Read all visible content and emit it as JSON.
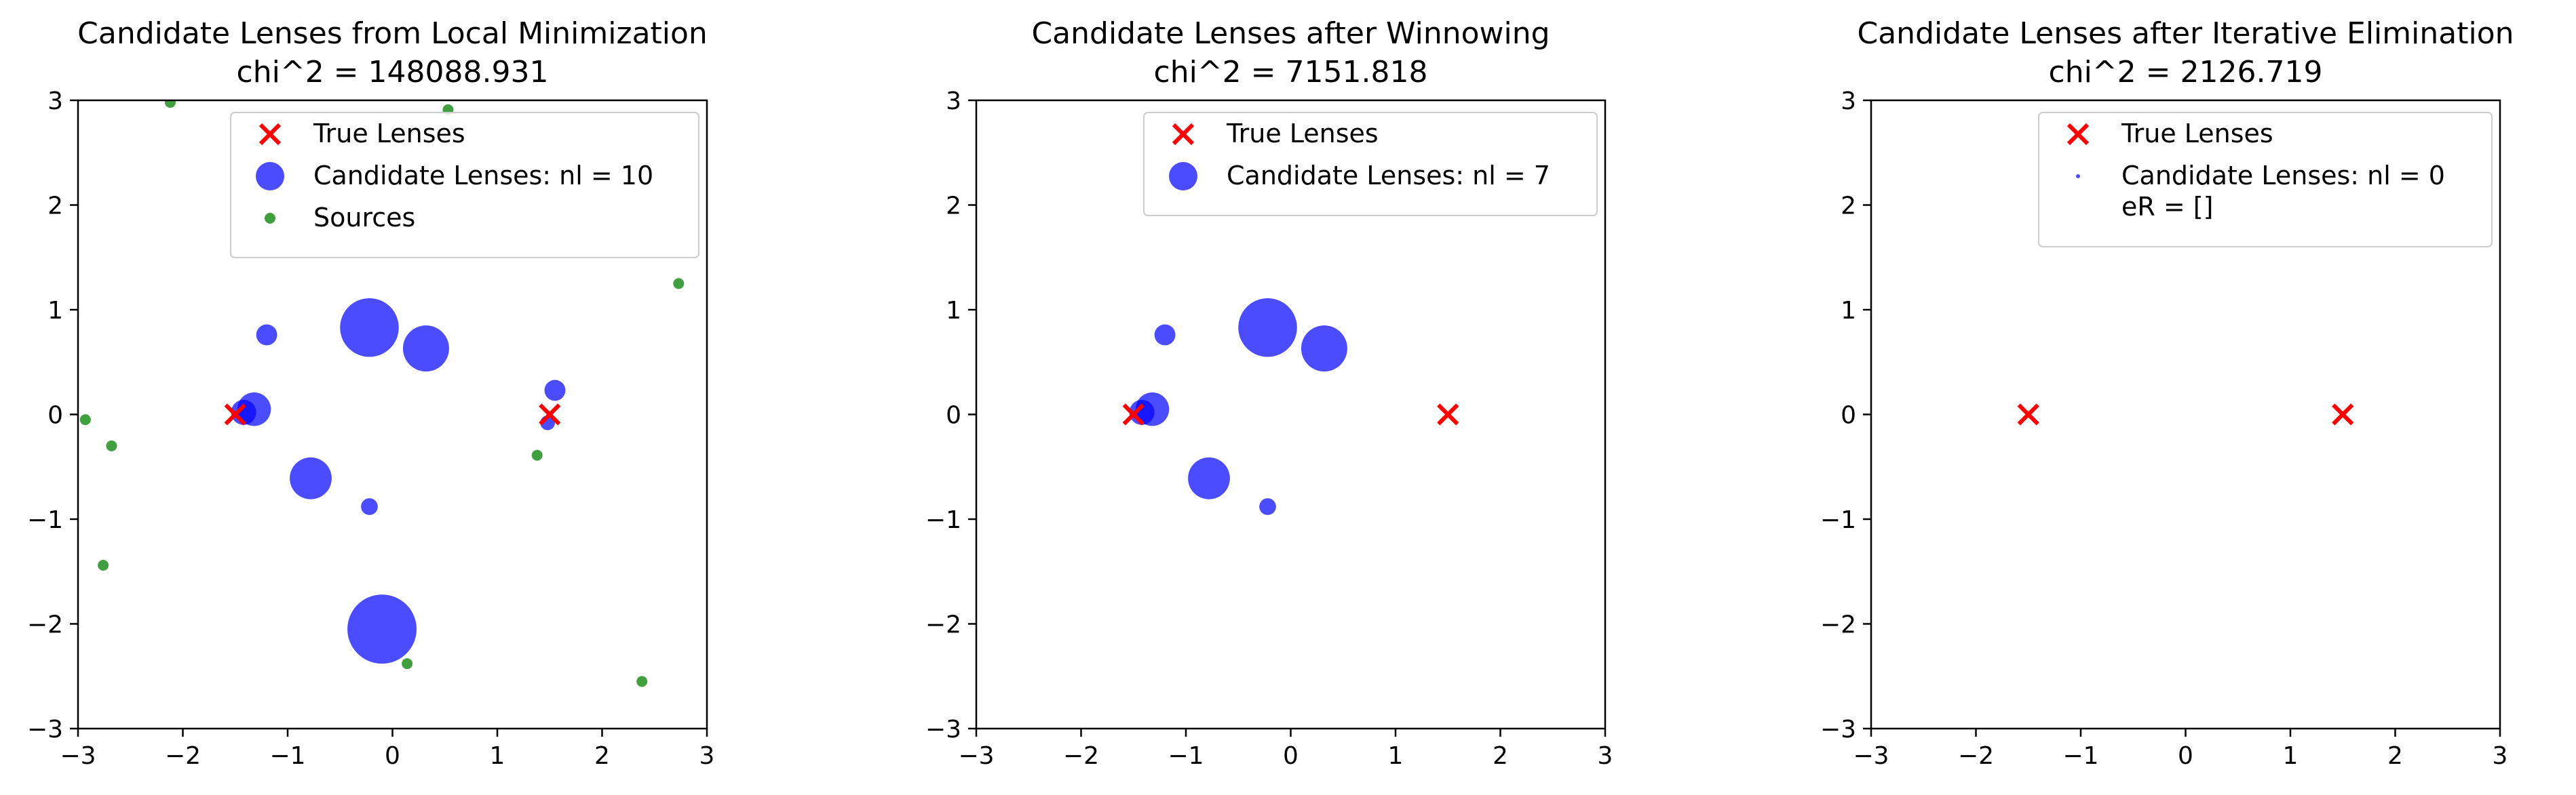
{
  "chart_data": [
    {
      "type": "scatter",
      "title": "Candidate Lenses from Local Minimization",
      "subtitle": "chi^2 = 148088.931",
      "xlim": [
        -3,
        3
      ],
      "ylim": [
        -3,
        3
      ],
      "xticks": [
        -3,
        -2,
        -1,
        0,
        1,
        2,
        3
      ],
      "yticks": [
        -3,
        -2,
        -1,
        0,
        1,
        2,
        3
      ],
      "grid": false,
      "legend_position": "top-right",
      "series": [
        {
          "name": "True Lenses",
          "marker": "x",
          "color": "#ff0000",
          "points": [
            [
              -1.5,
              0
            ],
            [
              1.5,
              0
            ]
          ]
        },
        {
          "name": "Candidate Lenses: nl = 10",
          "marker": "circle",
          "color": "#0000ff",
          "points": [
            {
              "x": -1.42,
              "y": 0.02,
              "size": 0.12
            },
            {
              "x": -1.32,
              "y": 0.05,
              "size": 0.16
            },
            {
              "x": -1.2,
              "y": 0.76,
              "size": 0.1
            },
            {
              "x": -0.78,
              "y": -0.61,
              "size": 0.2
            },
            {
              "x": -0.22,
              "y": 0.83,
              "size": 0.28
            },
            {
              "x": -0.22,
              "y": -0.88,
              "size": 0.08
            },
            {
              "x": -0.1,
              "y": -2.05,
              "size": 0.33
            },
            {
              "x": 0.32,
              "y": 0.63,
              "size": 0.22
            },
            {
              "x": 1.48,
              "y": -0.08,
              "size": 0.07
            },
            {
              "x": 1.55,
              "y": 0.23,
              "size": 0.1
            }
          ]
        },
        {
          "name": "Sources",
          "marker": "dot",
          "color": "#008000",
          "points": [
            [
              -2.12,
              2.98
            ],
            [
              0.53,
              2.91
            ],
            [
              2.73,
              1.25
            ],
            [
              -2.93,
              -0.05
            ],
            [
              -2.68,
              -0.3
            ],
            [
              -2.76,
              -1.44
            ],
            [
              1.38,
              -0.39
            ],
            [
              0.14,
              -2.38
            ],
            [
              2.38,
              -2.55
            ]
          ]
        }
      ]
    },
    {
      "type": "scatter",
      "title": "Candidate Lenses after Winnowing",
      "subtitle": "chi^2 = 7151.818",
      "xlim": [
        -3,
        3
      ],
      "ylim": [
        -3,
        3
      ],
      "xticks": [
        -3,
        -2,
        -1,
        0,
        1,
        2,
        3
      ],
      "yticks": [
        -3,
        -2,
        -1,
        0,
        1,
        2,
        3
      ],
      "grid": false,
      "legend_position": "top-right",
      "series": [
        {
          "name": "True Lenses",
          "marker": "x",
          "color": "#ff0000",
          "points": [
            [
              -1.5,
              0
            ],
            [
              1.5,
              0
            ]
          ]
        },
        {
          "name": "Candidate Lenses: nl = 7",
          "marker": "circle",
          "color": "#0000ff",
          "points": [
            {
              "x": -1.42,
              "y": 0.02,
              "size": 0.12
            },
            {
              "x": -1.32,
              "y": 0.05,
              "size": 0.16
            },
            {
              "x": -1.2,
              "y": 0.76,
              "size": 0.1
            },
            {
              "x": -0.78,
              "y": -0.61,
              "size": 0.2
            },
            {
              "x": -0.22,
              "y": 0.83,
              "size": 0.28
            },
            {
              "x": -0.22,
              "y": -0.88,
              "size": 0.08
            },
            {
              "x": 0.32,
              "y": 0.63,
              "size": 0.22
            }
          ]
        }
      ]
    },
    {
      "type": "scatter",
      "title": "Candidate Lenses after Iterative Elimination",
      "subtitle": "chi^2 = 2126.719",
      "xlim": [
        -3,
        3
      ],
      "ylim": [
        -3,
        3
      ],
      "xticks": [
        -3,
        -2,
        -1,
        0,
        1,
        2,
        3
      ],
      "yticks": [
        -3,
        -2,
        -1,
        0,
        1,
        2,
        3
      ],
      "grid": false,
      "legend_position": "top-right",
      "series": [
        {
          "name": "True Lenses",
          "marker": "x",
          "color": "#ff0000",
          "points": [
            [
              -1.5,
              0
            ],
            [
              1.5,
              0
            ]
          ]
        },
        {
          "name": "Candidate Lenses: nl = 0\n eR = []",
          "marker": "circle",
          "color": "#0000ff",
          "points": []
        }
      ]
    }
  ]
}
